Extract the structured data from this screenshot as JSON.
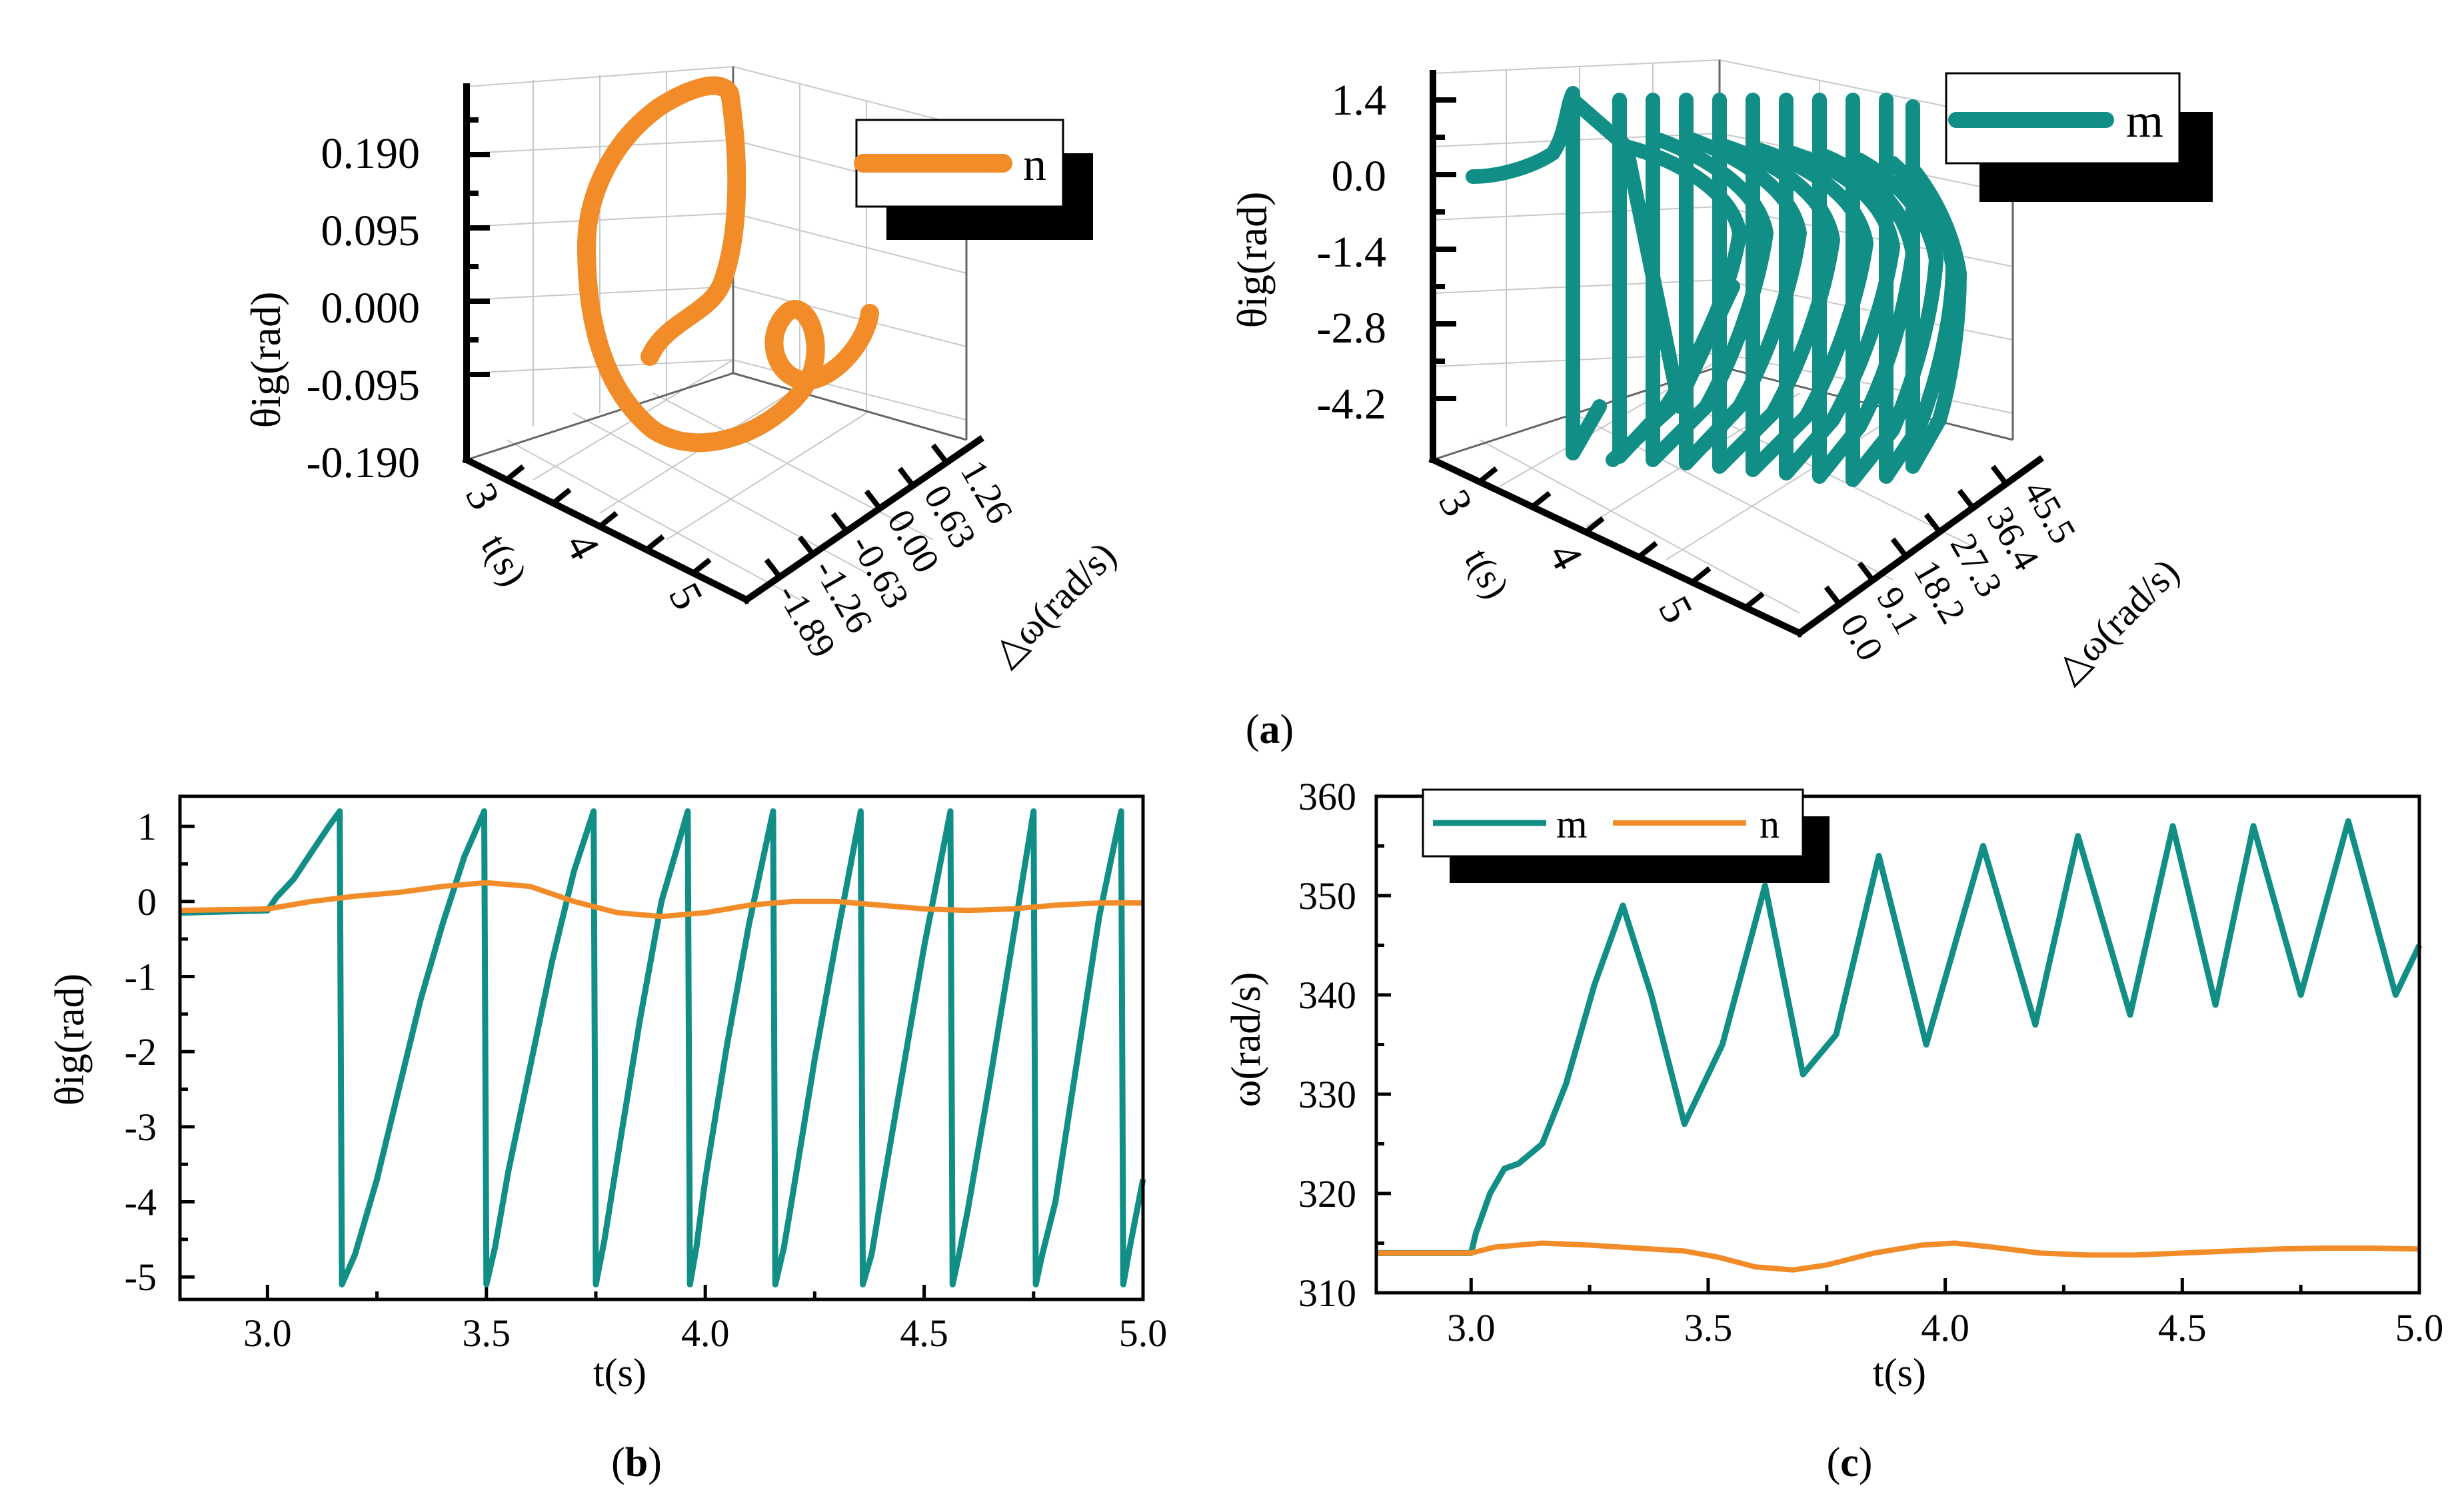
{
  "colors": {
    "m": "#118F86",
    "n": "#F28C28",
    "axis": "#000000",
    "grid": "#c8c8c8"
  },
  "figure_labels": {
    "a": "a",
    "b": "b",
    "c": "c"
  },
  "chart_data": [
    {
      "id": "a-left",
      "type": "line",
      "projection": "3d",
      "series": [
        {
          "name": "n",
          "color": "#F28C28"
        }
      ],
      "legend": {
        "label": "n",
        "position": "top-right"
      },
      "zlabel": "θig(rad)",
      "z_ticks": [
        "0.190",
        "0.095",
        "0.000",
        "-0.095",
        "-0.190"
      ],
      "tlabel": "t(s)",
      "t_ticks": [
        "3",
        "4",
        "5"
      ],
      "wlabel": "△ω(rad/s)",
      "w_ticks": [
        "1.26",
        "0.63",
        "0.00",
        "-0.63",
        "-1.26",
        "-1.89"
      ]
    },
    {
      "id": "a-right",
      "type": "line",
      "projection": "3d",
      "series": [
        {
          "name": "m",
          "color": "#118F86"
        }
      ],
      "legend": {
        "label": "m",
        "position": "top-right"
      },
      "zlabel": "θig(rad)",
      "z_ticks": [
        "1.4",
        "0.0",
        "-1.4",
        "-2.8",
        "-4.2"
      ],
      "tlabel": "t(s)",
      "t_ticks": [
        "3",
        "4",
        "5"
      ],
      "wlabel": "△ω(rad/s)",
      "w_ticks": [
        "45.5",
        "36.4",
        "27.3",
        "18.2",
        "9.1",
        "0.0"
      ]
    },
    {
      "id": "b",
      "type": "line",
      "xlabel": "t(s)",
      "ylabel": "θig(rad)",
      "xlim": [
        2.8,
        5.0
      ],
      "ylim": [
        -5.3,
        1.4
      ],
      "xticks": [
        "3.0",
        "3.5",
        "4.0",
        "4.5",
        "5.0"
      ],
      "yticks": [
        "1",
        "0",
        "-1",
        "-2",
        "-3",
        "-4",
        "-5"
      ],
      "series": [
        {
          "name": "m",
          "color": "#118F86",
          "x": [
            2.8,
            3.0,
            3.02,
            3.06,
            3.1,
            3.14,
            3.165,
            3.17,
            3.2,
            3.25,
            3.3,
            3.35,
            3.4,
            3.45,
            3.495,
            3.5,
            3.52,
            3.55,
            3.6,
            3.65,
            3.7,
            3.745,
            3.75,
            3.77,
            3.8,
            3.85,
            3.9,
            3.96,
            3.965,
            3.98,
            4.0,
            4.05,
            4.1,
            4.155,
            4.16,
            4.18,
            4.2,
            4.25,
            4.3,
            4.355,
            4.36,
            4.38,
            4.4,
            4.45,
            4.5,
            4.56,
            4.565,
            4.58,
            4.6,
            4.65,
            4.7,
            4.75,
            4.755,
            4.77,
            4.8,
            4.85,
            4.9,
            4.95,
            4.955,
            4.97,
            5.0
          ],
          "y": [
            -0.15,
            -0.12,
            0.05,
            0.3,
            0.65,
            1.0,
            1.2,
            -5.1,
            -4.7,
            -3.7,
            -2.5,
            -1.3,
            -0.3,
            0.6,
            1.2,
            -5.1,
            -4.6,
            -3.6,
            -2.2,
            -0.8,
            0.4,
            1.2,
            -5.1,
            -4.5,
            -3.4,
            -1.6,
            0.0,
            1.2,
            -5.1,
            -4.6,
            -3.7,
            -1.9,
            -0.3,
            1.2,
            -5.1,
            -4.6,
            -3.9,
            -2.1,
            -0.5,
            1.2,
            -5.1,
            -4.7,
            -4.0,
            -2.3,
            -0.6,
            1.2,
            -5.1,
            -4.7,
            -4.1,
            -2.4,
            -0.6,
            1.2,
            -5.1,
            -4.7,
            -4.0,
            -2.1,
            -0.2,
            1.2,
            -5.1,
            -4.6,
            -3.7
          ]
        },
        {
          "name": "n",
          "color": "#F28C28",
          "x": [
            2.8,
            3.0,
            3.1,
            3.2,
            3.3,
            3.4,
            3.5,
            3.6,
            3.7,
            3.8,
            3.9,
            4.0,
            4.1,
            4.2,
            4.3,
            4.4,
            4.5,
            4.6,
            4.7,
            4.8,
            4.9,
            5.0
          ],
          "y": [
            -0.12,
            -0.1,
            0.0,
            0.07,
            0.12,
            0.2,
            0.25,
            0.2,
            0.0,
            -0.15,
            -0.2,
            -0.15,
            -0.05,
            0.0,
            0.0,
            -0.05,
            -0.1,
            -0.12,
            -0.1,
            -0.05,
            -0.02,
            -0.02
          ]
        }
      ]
    },
    {
      "id": "c",
      "type": "line",
      "xlabel": "t(s)",
      "ylabel": "ω(rad/s)",
      "xlim": [
        2.8,
        5.0
      ],
      "ylim": [
        310,
        360
      ],
      "xticks": [
        "3.0",
        "3.5",
        "4.0",
        "4.5",
        "5.0"
      ],
      "yticks": [
        "360",
        "350",
        "340",
        "330",
        "320",
        "310"
      ],
      "legend": {
        "position": "top-left",
        "entries": [
          "m",
          "n"
        ]
      },
      "series": [
        {
          "name": "m",
          "color": "#118F86",
          "x": [
            2.8,
            3.0,
            3.01,
            3.04,
            3.07,
            3.1,
            3.15,
            3.2,
            3.26,
            3.32,
            3.38,
            3.45,
            3.53,
            3.62,
            3.7,
            3.77,
            3.86,
            3.96,
            4.08,
            4.19,
            4.28,
            4.39,
            4.48,
            4.57,
            4.65,
            4.75,
            4.85,
            4.95,
            5.0
          ],
          "y": [
            314,
            314,
            316,
            320,
            322.5,
            323,
            325,
            331,
            341,
            349,
            340,
            327,
            335,
            351,
            332,
            336,
            354,
            335,
            355,
            337,
            356,
            338,
            357,
            339,
            357,
            340,
            357.5,
            340,
            345
          ]
        },
        {
          "name": "n",
          "color": "#F28C28",
          "x": [
            2.8,
            3.0,
            3.05,
            3.15,
            3.25,
            3.35,
            3.45,
            3.52,
            3.6,
            3.68,
            3.75,
            3.85,
            3.95,
            4.02,
            4.1,
            4.2,
            4.3,
            4.4,
            4.5,
            4.6,
            4.7,
            4.8,
            4.9,
            5.0
          ],
          "y": [
            314,
            314,
            314.6,
            315,
            314.8,
            314.5,
            314.2,
            313.6,
            312.6,
            312.3,
            312.8,
            314,
            314.8,
            315,
            314.6,
            314,
            313.8,
            313.8,
            314,
            314.2,
            314.4,
            314.5,
            314.5,
            314.4
          ]
        }
      ]
    }
  ]
}
